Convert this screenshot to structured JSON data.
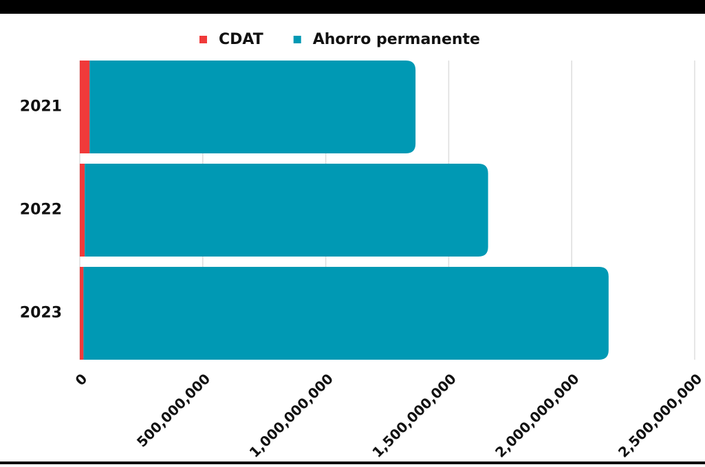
{
  "chart_data": {
    "type": "bar",
    "orientation": "horizontal",
    "stacked": true,
    "categories": [
      "2021",
      "2022",
      "2023"
    ],
    "series": [
      {
        "name": "CDAT",
        "color": "#f03a3a",
        "values": [
          40000000,
          20000000,
          15000000
        ]
      },
      {
        "name": "Ahorro permanente",
        "color": "#0099b4",
        "values": [
          1325000000,
          1640000000,
          2135000000
        ]
      }
    ],
    "xlim": [
      0,
      2500000000
    ],
    "xticks": [
      0,
      {
        "value": 500000000,
        "label": "500,000,000"
      },
      {
        "value": 1000000000,
        "label": "1,000,000,000"
      },
      {
        "value": 1500000000,
        "label": "1,500,000,000"
      },
      {
        "value": 2000000000,
        "label": "2,000,000,000"
      },
      {
        "value": 2500000000,
        "label": "2,500,000,000"
      }
    ],
    "grid": true,
    "legend": "top"
  }
}
